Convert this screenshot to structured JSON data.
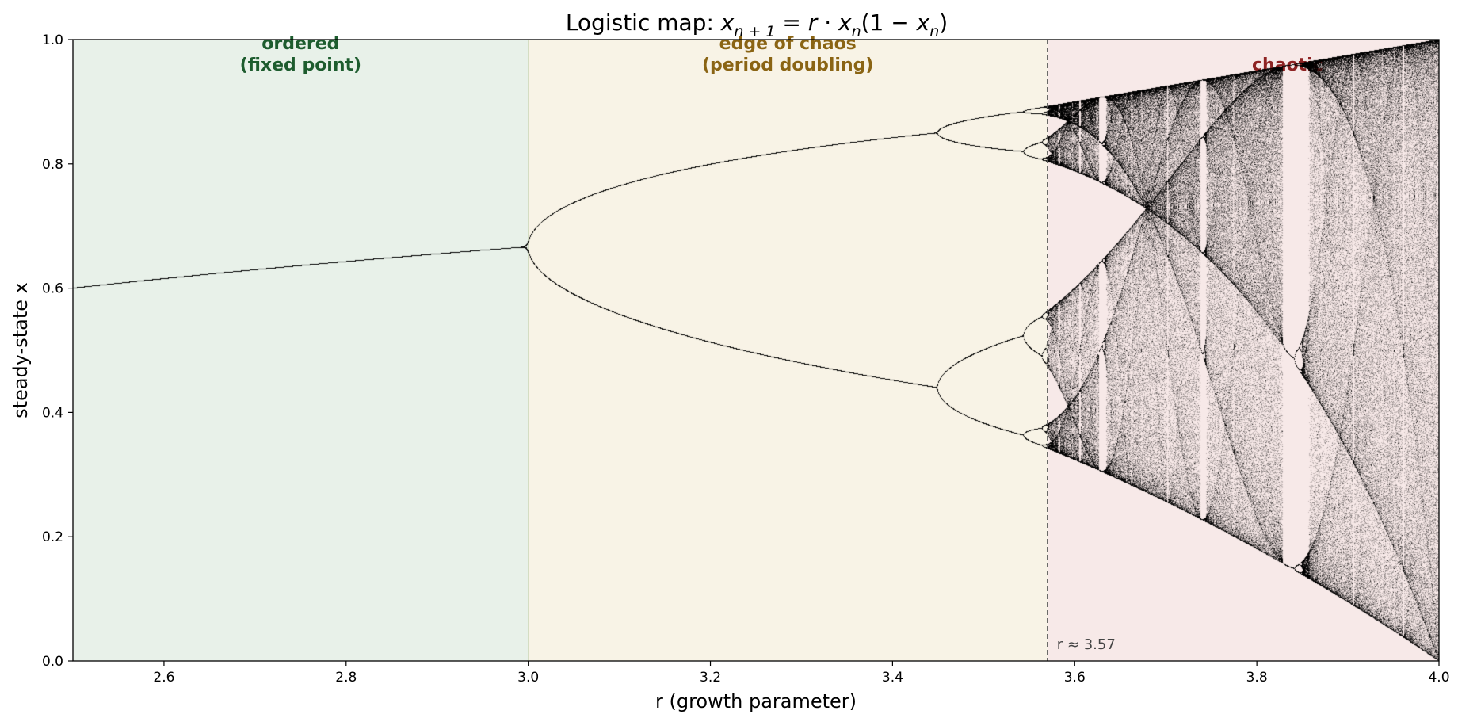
{
  "chart_data": {
    "type": "scatter",
    "title": "Logistic map:  x_{n+1} = r · x_n(1 − x_n)",
    "title_parts": {
      "prefix": "Logistic map:  ",
      "x": "x",
      "sub_n1": "n + 1",
      "eq": " = ",
      "r": "r",
      "dot": " · ",
      "x2": "x",
      "sub_n": "n",
      "paren_open": "(1 − ",
      "x3": "x",
      "sub_n2": "n",
      "paren_close": ")"
    },
    "xlabel": "r  (growth parameter)",
    "ylabel": "steady-state  x",
    "xlim": [
      2.5,
      4.0
    ],
    "ylim": [
      0.0,
      1.0
    ],
    "x_ticks": [
      "2.6",
      "2.8",
      "3.0",
      "3.2",
      "3.4",
      "3.6",
      "3.8",
      "4.0"
    ],
    "y_ticks": [
      "0.0",
      "0.2",
      "0.4",
      "0.6",
      "0.8",
      "1.0"
    ],
    "grid": false,
    "series": [
      {
        "generator": "logistic_map_bifurcation",
        "r_range": [
          2.5,
          4.0
        ],
        "marker_color": "#000000"
      }
    ],
    "regions": [
      {
        "label_line1": "ordered",
        "label_line2": "(fixed point)",
        "x_start": 2.5,
        "x_end": 3.0,
        "fill": "#e8f1e9",
        "text_color": "#1d5c2e"
      },
      {
        "label_line1": "edge of chaos",
        "label_line2": "(period doubling)",
        "x_start": 3.0,
        "x_end": 3.57,
        "fill": "#f8f3e6",
        "text_color": "#8a6414"
      },
      {
        "label_line1": "chaotic",
        "label_line2": "",
        "x_start": 3.57,
        "x_end": 4.0,
        "fill": "#f7e9e8",
        "text_color": "#8e2323"
      }
    ],
    "threshold_line": {
      "x": 3.57,
      "style": "dashed",
      "label": "r ≈ 3.57"
    }
  }
}
